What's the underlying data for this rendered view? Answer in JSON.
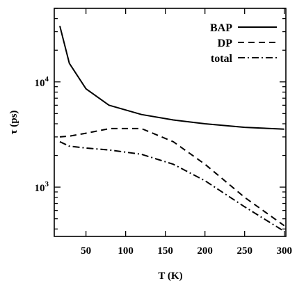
{
  "chart_data": {
    "type": "line",
    "title": "",
    "xlabel": "T (K)",
    "ylabel": "τ (ps)",
    "xlim": [
      10,
      302
    ],
    "ylim": [
      340,
      50000
    ],
    "y_scale": "log",
    "x_ticks": [
      50,
      100,
      150,
      200,
      250,
      300
    ],
    "y_ticks": [
      {
        "value": 1000,
        "base": "10",
        "exponent": "3"
      },
      {
        "value": 10000,
        "base": "10",
        "exponent": "4"
      }
    ],
    "grid": false,
    "legend_position": "top-right",
    "series": [
      {
        "name": "BAP",
        "style": "solid",
        "x": [
          17,
          29,
          50,
          79,
          120,
          160,
          200,
          250,
          300
        ],
        "y": [
          34000,
          15000,
          8600,
          6000,
          4900,
          4350,
          4000,
          3700,
          3550
        ]
      },
      {
        "name": "DP",
        "style": "dashed",
        "x": [
          17,
          29,
          50,
          80,
          120,
          160,
          200,
          250,
          300
        ],
        "y": [
          3000,
          3050,
          3250,
          3600,
          3600,
          2700,
          1650,
          800,
          430
        ]
      },
      {
        "name": "total",
        "style": "dashdot",
        "x": [
          17,
          29,
          50,
          80,
          120,
          160,
          200,
          250,
          300
        ],
        "y": [
          2700,
          2450,
          2350,
          2250,
          2050,
          1650,
          1150,
          650,
          380
        ]
      }
    ]
  },
  "colors": {
    "line": "#000000",
    "background": "#ffffff"
  }
}
